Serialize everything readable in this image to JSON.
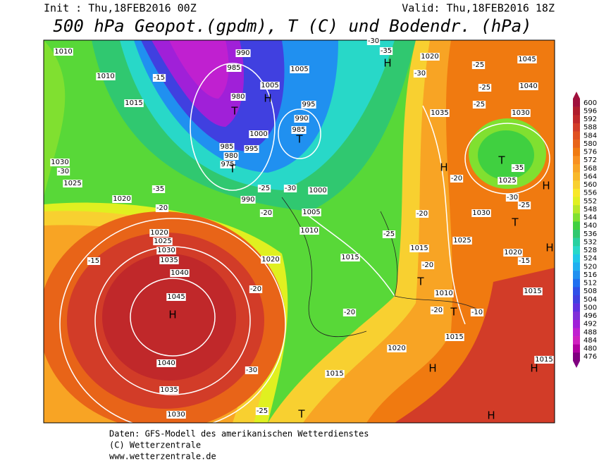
{
  "header": {
    "init": "Init : Thu,18FEB2016 00Z",
    "valid": "Valid: Thu,18FEB2016 18Z",
    "title": "500 hPa Geopot.(gpdm), T (C) und Bodendr. (hPa)"
  },
  "footer": {
    "source": "Daten: GFS-Modell des amerikanischen Wetterdienstes",
    "copyright": "(C) Wetterzentrale",
    "url": "www.wetterzentrale.de"
  },
  "colorbar": {
    "labels": [
      600,
      596,
      592,
      588,
      584,
      580,
      576,
      572,
      568,
      564,
      560,
      556,
      552,
      548,
      544,
      540,
      536,
      532,
      528,
      524,
      520,
      516,
      512,
      508,
      504,
      500,
      496,
      492,
      488,
      484,
      480,
      476
    ],
    "colors": [
      "#a0103c",
      "#b01c2c",
      "#c0282a",
      "#d23c28",
      "#e05020",
      "#e86418",
      "#f07a10",
      "#f89020",
      "#f8a424",
      "#f8b828",
      "#f8d030",
      "#f8e828",
      "#e0f020",
      "#b8e828",
      "#80e030",
      "#40d040",
      "#30c870",
      "#28d0a0",
      "#28d8c8",
      "#20c8e8",
      "#20b0f0",
      "#2090f0",
      "#2070f0",
      "#3050e8",
      "#4040e0",
      "#6030e0",
      "#8030d8",
      "#a020d8",
      "#c020d0",
      "#d020c0",
      "#b000a0",
      "#800080"
    ]
  },
  "map": {
    "isobars": [
      "1010",
      "1010",
      "1015",
      "1030",
      "1025",
      "1020",
      "990",
      "985",
      "1005",
      "1005",
      "980",
      "995",
      "990",
      "985",
      "1000",
      "995",
      "985",
      "980",
      "975",
      "1000",
      "990",
      "1005",
      "1010",
      "1015",
      "1020",
      "1020",
      "1025",
      "1030",
      "1035",
      "1040",
      "1045",
      "1040",
      "1035",
      "1030",
      "1020",
      "1045",
      "1040",
      "1035",
      "1030",
      "1025",
      "1030",
      "1025",
      "1015",
      "1020",
      "1010",
      "1015",
      "1015",
      "1020",
      "1015",
      "1015"
    ],
    "temperatures": [
      "-15",
      "-15",
      "-20",
      "-20",
      "-25",
      "-30",
      "-30",
      "-35",
      "-20",
      "-20",
      "-25",
      "-30",
      "-35",
      "-30",
      "-25",
      "-25",
      "-25",
      "-35",
      "-20",
      "-30",
      "-25",
      "-20",
      "-20",
      "-15",
      "-20",
      "-10",
      "-30",
      "-25"
    ],
    "centers": [
      "H",
      "H",
      "T",
      "T",
      "T",
      "H",
      "H",
      "T",
      "H",
      "T",
      "H",
      "T",
      "T",
      "H",
      "H",
      "T",
      "H"
    ]
  }
}
